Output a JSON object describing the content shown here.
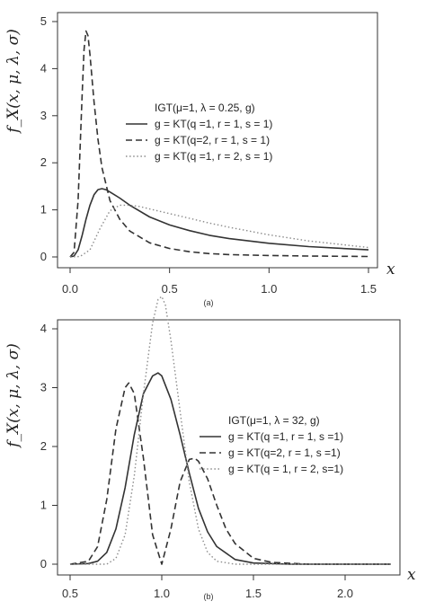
{
  "chart_data": [
    {
      "type": "line",
      "caption": "(a)",
      "xlabel": "x",
      "ylabel": "f_X(x, μ, λ, σ)",
      "xlim": [
        0,
        1.5
      ],
      "ylim": [
        0,
        5
      ],
      "x_ticks": [
        "0.0",
        "0.5",
        "1.0",
        "1.5"
      ],
      "y_ticks": [
        "0",
        "1",
        "2",
        "3",
        "4",
        "5"
      ],
      "legend_title": "IGT(μ=1, λ = 0.25, g)",
      "legend_position": "center-right",
      "grid": false,
      "series": [
        {
          "name": "g = KT(q =1, r = 1, s = 1)",
          "style": "solid",
          "x": [
            0,
            0.02,
            0.04,
            0.06,
            0.08,
            0.1,
            0.12,
            0.14,
            0.16,
            0.18,
            0.2,
            0.25,
            0.3,
            0.4,
            0.5,
            0.6,
            0.7,
            0.8,
            1.0,
            1.2,
            1.5
          ],
          "values": [
            0,
            0.02,
            0.15,
            0.45,
            0.8,
            1.1,
            1.32,
            1.43,
            1.45,
            1.43,
            1.38,
            1.25,
            1.1,
            0.85,
            0.68,
            0.56,
            0.46,
            0.39,
            0.29,
            0.22,
            0.15
          ]
        },
        {
          "name": "g = KT(q=2, r = 1, s = 1)",
          "style": "dashed",
          "x": [
            0,
            0.02,
            0.04,
            0.06,
            0.07,
            0.08,
            0.09,
            0.1,
            0.12,
            0.14,
            0.16,
            0.2,
            0.25,
            0.3,
            0.4,
            0.5,
            0.6,
            0.7,
            0.8,
            1.0,
            1.2,
            1.5
          ],
          "values": [
            0,
            0.1,
            1.2,
            3.4,
            4.4,
            4.8,
            4.7,
            4.3,
            3.3,
            2.5,
            1.9,
            1.2,
            0.8,
            0.55,
            0.3,
            0.18,
            0.11,
            0.07,
            0.05,
            0.03,
            0.02,
            0.01
          ]
        },
        {
          "name": "g = KT(q =1, r = 2, s = 1)",
          "style": "dotted",
          "x": [
            0,
            0.05,
            0.1,
            0.15,
            0.2,
            0.25,
            0.3,
            0.35,
            0.4,
            0.5,
            0.6,
            0.7,
            0.8,
            1.0,
            1.2,
            1.5
          ],
          "values": [
            0,
            0.01,
            0.15,
            0.6,
            0.98,
            1.1,
            1.1,
            1.07,
            1.02,
            0.92,
            0.82,
            0.72,
            0.63,
            0.47,
            0.34,
            0.2
          ]
        }
      ]
    },
    {
      "type": "line",
      "caption": "(b)",
      "xlabel": "x",
      "ylabel": "f_X(x, μ, λ, σ)",
      "xlim": [
        0.5,
        2.25
      ],
      "ylim": [
        0,
        4.8
      ],
      "x_ticks": [
        "0.5",
        "1.0",
        "1.5",
        "2.0"
      ],
      "y_ticks": [
        "0",
        "1",
        "2",
        "3",
        "4"
      ],
      "legend_title": "IGT(μ=1, λ = 32, g)",
      "legend_position": "center-right",
      "grid": false,
      "series": [
        {
          "name": "g = KT(q =1, r = 1, s =1)",
          "style": "solid",
          "x": [
            0.5,
            0.6,
            0.65,
            0.7,
            0.75,
            0.8,
            0.85,
            0.9,
            0.95,
            0.98,
            1.0,
            1.05,
            1.1,
            1.15,
            1.2,
            1.25,
            1.3,
            1.4,
            1.5,
            1.7,
            2.0,
            2.25
          ],
          "values": [
            0,
            0.01,
            0.05,
            0.2,
            0.6,
            1.3,
            2.2,
            2.9,
            3.2,
            3.25,
            3.2,
            2.8,
            2.2,
            1.55,
            0.95,
            0.55,
            0.3,
            0.08,
            0.02,
            0,
            0,
            0
          ]
        },
        {
          "name": "g = KT(q=2, r = 1, s =1)",
          "style": "dashed",
          "x": [
            0.5,
            0.6,
            0.65,
            0.7,
            0.75,
            0.8,
            0.82,
            0.85,
            0.9,
            0.95,
            1.0,
            1.05,
            1.1,
            1.15,
            1.18,
            1.2,
            1.25,
            1.3,
            1.35,
            1.4,
            1.5,
            1.6,
            1.8,
            2.25
          ],
          "values": [
            0,
            0.05,
            0.3,
            1.1,
            2.3,
            3.0,
            3.08,
            2.9,
            1.8,
            0.5,
            0.0,
            0.6,
            1.4,
            1.78,
            1.8,
            1.75,
            1.45,
            1.0,
            0.6,
            0.35,
            0.1,
            0.03,
            0,
            0
          ]
        },
        {
          "name": "g = KT(q = 1, r = 2, s=1)",
          "style": "dotted",
          "x": [
            0.5,
            0.7,
            0.75,
            0.8,
            0.85,
            0.9,
            0.95,
            0.98,
            1.0,
            1.02,
            1.05,
            1.1,
            1.15,
            1.2,
            1.25,
            1.3,
            1.4,
            1.6,
            2.25
          ],
          "values": [
            0,
            0,
            0.1,
            0.5,
            1.5,
            2.9,
            4.1,
            4.5,
            4.55,
            4.4,
            3.8,
            2.6,
            1.4,
            0.6,
            0.2,
            0.05,
            0,
            0,
            0
          ]
        }
      ]
    }
  ]
}
